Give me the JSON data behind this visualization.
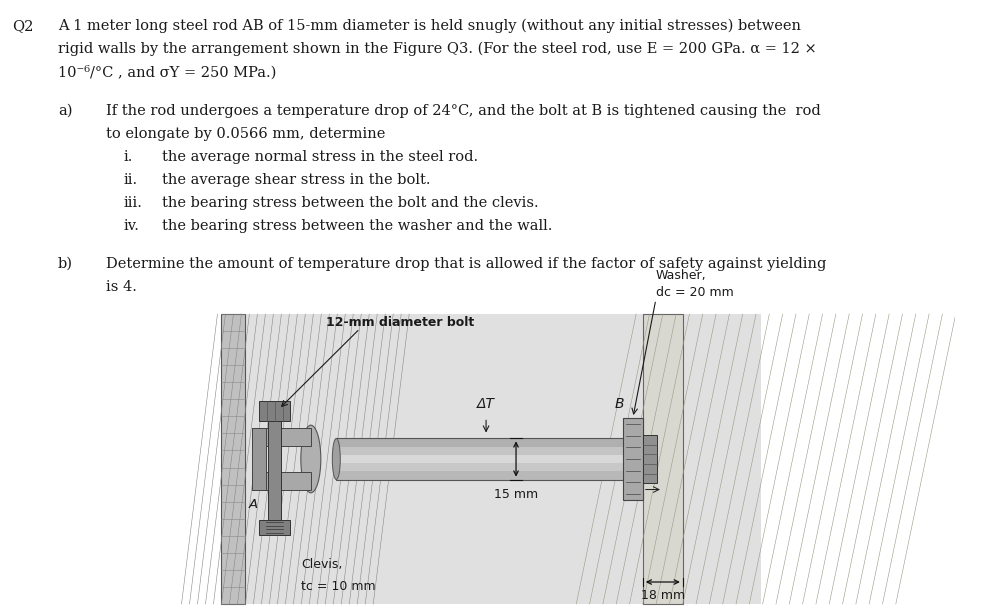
{
  "bg_color": "#ffffff",
  "text_color": "#1a1a1a",
  "q2_label": "Q2",
  "intro_line1": "A 1 meter long steel rod AB of 15-mm diameter is held snugly (without any initial stresses) between",
  "intro_line2": "rigid walls by the arrangement shown in the Figure Q3. (For the steel rod, use E = 200 GPa. α = 12 ×",
  "intro_line3": "10⁻⁶/°C , and σY = 250 MPa.)",
  "a_label": "a)",
  "a_line1": "If the rod undergoes a temperature drop of 24°C, and the bolt at B is tightened causing the  rod",
  "a_line2": "to elongate by 0.0566 mm, determine",
  "i_label": "i.",
  "i_text": "the average normal stress in the steel rod.",
  "ii_label": "ii.",
  "ii_text": "the average shear stress in the bolt.",
  "iii_label": "iii.",
  "iii_text": "the bearing stress between the bolt and the clevis.",
  "iv_label": "iv.",
  "iv_text": "the bearing stress between the washer and the wall.",
  "b_label": "b)",
  "b_line1": "Determine the amount of temperature drop that is allowed if the factor of safety against yielding",
  "b_line2": "is 4.",
  "lbl_bolt": "12-mm diameter bolt",
  "lbl_washer1": "Washer,",
  "lbl_washer2": "dᴄ = 20 mm",
  "lbl_clevis1": "Clevis,",
  "lbl_clevis2": "tᴄ = 10 mm",
  "lbl_DT": "ΔT",
  "lbl_B": "B",
  "lbl_A": "A",
  "lbl_15mm": "15 mm",
  "lbl_18mm": "18 mm",
  "fig_width": 9.92,
  "fig_height": 6.09,
  "dpi": 100
}
